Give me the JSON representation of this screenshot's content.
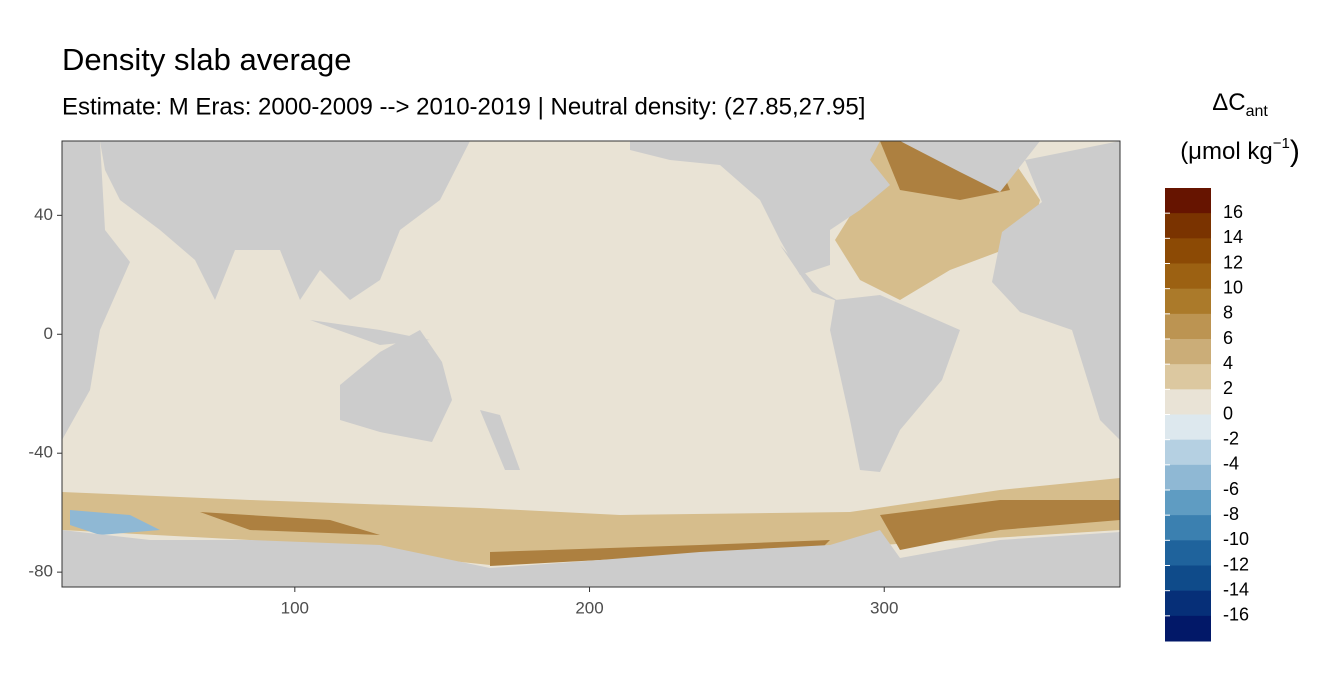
{
  "chart_data": {
    "type": "map",
    "title": "Density slab average",
    "subtitle": "Estimate: M Eras: 2000-2009 --> 2010-2019 | Neutral density: (27.85,27.95]",
    "xlim": [
      21,
      380
    ],
    "ylim": [
      -85,
      65
    ],
    "xticks": [
      100,
      200,
      300
    ],
    "yticks": [
      40,
      0,
      -40,
      -80
    ],
    "legend": {
      "title": {
        "main": "ΔC",
        "sub": "ant"
      },
      "unit": {
        "main": "(μmol kg",
        "sup": "−1",
        "end": ")"
      },
      "lim": [
        -18,
        18
      ],
      "ticks": [
        16,
        14,
        12,
        10,
        8,
        6,
        4,
        2,
        0,
        -2,
        -4,
        -6,
        -8,
        -10,
        -12,
        -14,
        -16
      ],
      "colors": [
        "#661400",
        "#7a3300",
        "#8c4a05",
        "#9c6112",
        "#ab7a2a",
        "#bc9452",
        "#cbad78",
        "#dcc8a0",
        "#e9e3d6",
        "#dde8ee",
        "#b5d0e2",
        "#8fb8d4",
        "#5f9cc2",
        "#3b80b0",
        "#1f639c",
        "#0f4b8a",
        "#062f78",
        "#021868"
      ]
    }
  }
}
